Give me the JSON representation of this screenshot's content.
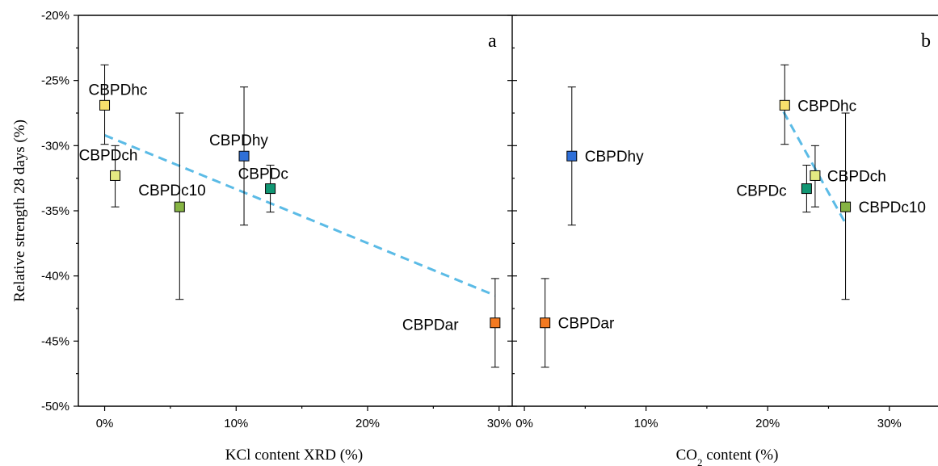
{
  "chart_data": [
    {
      "panel": "a",
      "type": "scatter",
      "xlabel": "KCl content XRD (%)",
      "ylabel": "Relative strength 28 days (%)",
      "xlim": [
        -2,
        31
      ],
      "ylim": [
        -50,
        -20
      ],
      "xticks": [
        0,
        10,
        20,
        30
      ],
      "xtick_labels": [
        "0%",
        "10%",
        "20%",
        "30%"
      ],
      "yticks": [
        -20,
        -25,
        -30,
        -35,
        -40,
        -45,
        -50
      ],
      "ytick_labels": [
        "-20%",
        "-25%",
        "-30%",
        "-35%",
        "-40%",
        "-45%",
        "-50%"
      ],
      "points": [
        {
          "label": "CBPDhc",
          "x": 0.0,
          "y": -26.9,
          "err_low": -29.9,
          "err_high": -23.8,
          "color": "#f8e06c"
        },
        {
          "label": "CBPDch",
          "x": 0.8,
          "y": -32.3,
          "err_low": -34.7,
          "err_high": -30.0,
          "color": "#e4ea82"
        },
        {
          "label": "CBPDc10",
          "x": 5.7,
          "y": -34.7,
          "err_low": -41.8,
          "err_high": -27.5,
          "color": "#86b443"
        },
        {
          "label": "CBPDhy",
          "x": 10.6,
          "y": -30.8,
          "err_low": -36.1,
          "err_high": -25.5,
          "color": "#2e6fd8"
        },
        {
          "label": "CBPDc",
          "x": 12.6,
          "y": -33.3,
          "err_low": -35.1,
          "err_high": -31.5,
          "color": "#119673"
        },
        {
          "label": "CBPDar",
          "x": 29.7,
          "y": -43.6,
          "err_low": -47.0,
          "err_high": -40.2,
          "color": "#f37a21"
        }
      ],
      "trendline": {
        "x": [
          0,
          29.7
        ],
        "y": [
          -29.2,
          -41.5
        ]
      }
    },
    {
      "panel": "b",
      "type": "scatter",
      "xlabel_main": "CO",
      "xlabel_sub": "2",
      "xlabel_rest": " content (%)",
      "ylim": [
        -50,
        -20
      ],
      "xlim": [
        -1,
        34
      ],
      "xticks": [
        0,
        10,
        20,
        30
      ],
      "xtick_labels": [
        "0%",
        "10%",
        "20%",
        "30%"
      ],
      "points": [
        {
          "label": "CBPDhy",
          "x": 3.9,
          "y": -30.8,
          "err_low": -36.1,
          "err_high": -25.5,
          "color": "#2e6fd8"
        },
        {
          "label": "CBPDar",
          "x": 1.7,
          "y": -43.6,
          "err_low": -47.0,
          "err_high": -40.2,
          "color": "#f37a21"
        },
        {
          "label": "CBPDhc",
          "x": 21.4,
          "y": -26.9,
          "err_low": -29.9,
          "err_high": -23.8,
          "color": "#f8e06c"
        },
        {
          "label": "CBPDch",
          "x": 23.9,
          "y": -32.3,
          "err_low": -34.7,
          "err_high": -30.0,
          "color": "#e4ea82"
        },
        {
          "label": "CBPDc",
          "x": 23.2,
          "y": -33.3,
          "err_low": -35.1,
          "err_high": -31.5,
          "color": "#119673"
        },
        {
          "label": "CBPDc10",
          "x": 26.4,
          "y": -34.7,
          "err_low": -41.8,
          "err_high": -27.5,
          "color": "#86b443"
        }
      ],
      "trendline": {
        "x": [
          21.3,
          26.3
        ],
        "y": [
          -27.4,
          -35.8
        ]
      }
    }
  ]
}
